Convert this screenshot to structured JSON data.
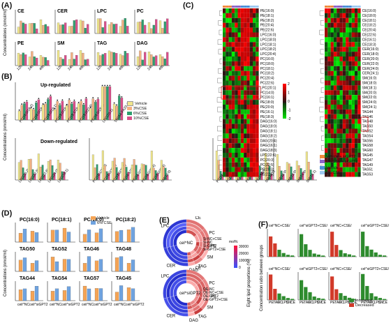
{
  "panels": {
    "A": {
      "label": "(A)",
      "ylabel": "Concentrations (nmol/ml)",
      "groups": [
        "CE",
        "CER",
        "LPC",
        "PC",
        "PE",
        "SM",
        "TAG",
        "DAG"
      ],
      "xticks": [
        "12h",
        "24h",
        "48h"
      ]
    },
    "B": {
      "label": "(B)",
      "ylabel": "Concentrations (nmol/ml)",
      "up_title": "Up-regulated",
      "down_title": "Down-regulated",
      "legend": [
        "Vehicle",
        "3%CSE",
        "6%CSE",
        "10%CSE"
      ],
      "up_labels": [
        "PC(16:0/18:2)",
        "PC(16:0/18:3)",
        "PC(18:0/18:1)",
        "PC(18:0/18:2)",
        "PC(18:1/18:1)",
        "PC(18:0/22:6)",
        "PE(16:0/18:3)",
        "LPC(20:1)",
        "TAG54-FA20:4"
      ],
      "down_labels": [
        "LPC(20:2)",
        "LPC(22:5)",
        "LPC(22:6)",
        "LPC(24:0)",
        "LPC(16:1)",
        "PC(16:1/18:2)",
        "PC(16:0/20:2)",
        "PC(18:0/20:4)",
        "PE(16:1/18:2)",
        "PE(16:0/16:1)",
        "PE(16:0/20:4)",
        "PE(18:0/20:4)",
        "SM(18:0)",
        "PC(16:1/18:2)",
        "PC(16:0/18:1)",
        "PE(16:1/20:1)",
        "PE(18:1/20:4)",
        "PE(18:0/22:6)",
        "SM(16:0)",
        "SM(18:0)",
        "SM(22:0)",
        "SM(24:0)",
        "SM(24:1)"
      ]
    },
    "C": {
      "label": "(C)",
      "legend_top": "Vehicle + siGPT2",
      "legend_mid": "6% CSE + siGPT2",
      "legend_a": "Vehicle",
      "legend_b": "6% CSE",
      "scale_ticks": [
        "2",
        "1",
        "0",
        "-1",
        "-2"
      ],
      "left_rows": [
        "PE(16:0)",
        "PE(18:1)",
        "PE(18:2)",
        "PE(20:4)",
        "PE(22:6)",
        "LPC(16:0)",
        "LPC(18:0)",
        "LPC(18:1)",
        "LPC(18:2)",
        "LPC(20:4)",
        "PC(16:0)",
        "PC(18:0)",
        "PC(18:1)",
        "PC(18:2)",
        "PC(20:4)",
        "PC(22:6)",
        "LPC(20:1)",
        "PC(14:0)",
        "PC(16:1)",
        "PE(18:0)",
        "PE(20:0)",
        "PE(16:1)",
        "PE(18:3)",
        "DAG(16:0)",
        "DAG(18:0)",
        "DAG(18:1)",
        "DAG(18:2)",
        "DAG(20:4)",
        "DAG(16:1)",
        "DAG(18:3)",
        "LPC(22:6)",
        "PC(20:3)",
        "PC(22:5)",
        "PE(20:3)",
        "PE(22:5)"
      ],
      "right_rows": [
        "CE(16:0)",
        "CE(18:0)",
        "CE(18:1)",
        "CE(18:2)",
        "CE(20:4)",
        "CE(22:6)",
        "CE(16:1)",
        "CE(18:3)",
        "CER(16:0)",
        "CER(18:0)",
        "CER(20:0)",
        "CER(22:0)",
        "CER(24:0)",
        "CER(24:1)",
        "SM(16:0)",
        "SM(18:0)",
        "SM(18:1)",
        "SM(20:0)",
        "SM(22:0)",
        "SM(24:0)",
        "SM(24:1)",
        "TAG44",
        "TAG46",
        "TAG48",
        "TAG50",
        "TAG52",
        "TAG54",
        "TAG56",
        "TAG58",
        "TAG60",
        "TAG45",
        "TAG47",
        "TAG49",
        "TAG51",
        "TAG53"
      ]
    },
    "D": {
      "label": "(D)",
      "ylabel": "Concentrations (nmol/ml)",
      "legend": [
        "Vehicle",
        "6% CSE"
      ],
      "titles": [
        "PC(16:0)",
        "PC(18:1)",
        "PC(18:0)",
        "PC(18:2)",
        "TAG50",
        "TAG52",
        "TAG46",
        "TAG48",
        "TAG44",
        "TAG54",
        "TAG57",
        "TAG45"
      ],
      "xlabels": [
        "ceil^NC",
        "ceil^siGPT2"
      ]
    },
    "E": {
      "label": "(E)",
      "ylabel": "Eight lipid proportions (%)",
      "colorbar_title": "mol%",
      "colorbar_ticks_top": [
        "30000",
        "20000",
        "10000",
        "0"
      ],
      "top_center": "cel^NC",
      "bottom_center": "cel^siGPT2",
      "segments": [
        "CE",
        "PC",
        "PE",
        "SM",
        "TAG",
        "DAG",
        "CER",
        "LPC"
      ],
      "top_legend": [
        "Si-NC+CSE",
        "Si-NC",
        "Si-GPT2",
        "Si-GPT2+CSE"
      ],
      "bottom_legend": [
        "OE-NC",
        "OE-NC+CSE",
        "OE-GPT2",
        "OE-GPT2+CSE"
      ]
    },
    "F": {
      "label": "(F)",
      "ylabel": "Concentration ratio between groups",
      "legend": [
        "Increased",
        "Decreased"
      ],
      "titles": [
        "cel^NC+CSE/\ncel^NC+Veh",
        "cel^siGPT2+CSE/\ncel^siGPT2+Veh",
        "cel^NC+CSE/\ncel^NC+Veh",
        "cel^siGPT2+CSE/\ncel^siGPT2+Veh"
      ],
      "xcats": [
        "PE",
        "TAG",
        "PC",
        "LPC",
        "SM",
        "CE",
        "DAG",
        "CER"
      ]
    }
  },
  "colors": {
    "vehicle": "#f0e68c",
    "cse3": "#f4b183",
    "cse6": "#2e9e6e",
    "cse10": "#d94f8a",
    "d_vehicle": "#f5a455",
    "d_cse": "#6fa3e0",
    "inc": "#2e8b2e",
    "dec": "#d23a2a"
  }
}
